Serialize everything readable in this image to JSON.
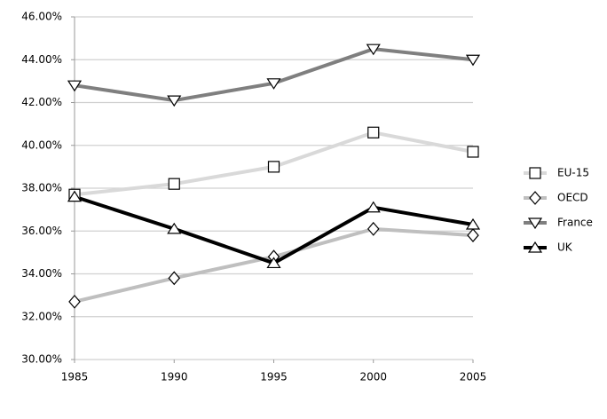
{
  "chart_data": {
    "type": "line",
    "x": [
      1985,
      1990,
      1995,
      2000,
      2005
    ],
    "xlim": [
      1985,
      2005
    ],
    "xticks": [
      1985,
      1990,
      1995,
      2000,
      2005
    ],
    "ylim": [
      30,
      46
    ],
    "yticks": [
      {
        "value": 30,
        "label": "30.00%"
      },
      {
        "value": 32,
        "label": "32.00%"
      },
      {
        "value": 34,
        "label": "34.00%"
      },
      {
        "value": 36,
        "label": "36.00%"
      },
      {
        "value": 38,
        "label": "38.00%"
      },
      {
        "value": 40,
        "label": "40.00%"
      },
      {
        "value": 42,
        "label": "42.00%"
      },
      {
        "value": 44,
        "label": "44.00%"
      },
      {
        "value": 46,
        "label": "46.00%"
      }
    ],
    "grid": true,
    "legend": "right",
    "series": [
      {
        "name": "EU-15",
        "color": "#d9d9d9",
        "marker": "square",
        "values": [
          37.7,
          38.2,
          39.0,
          40.6,
          39.7
        ]
      },
      {
        "name": "OECD",
        "color": "#bfbfbf",
        "marker": "diamond",
        "values": [
          32.7,
          33.8,
          34.8,
          36.1,
          35.8
        ]
      },
      {
        "name": "France",
        "color": "#7f7f7f",
        "marker": "triangle-down",
        "values": [
          42.8,
          42.1,
          42.9,
          44.5,
          44.0
        ]
      },
      {
        "name": "UK",
        "color": "#000000",
        "marker": "triangle-up",
        "values": [
          37.6,
          36.1,
          34.5,
          37.1,
          36.3
        ]
      }
    ]
  }
}
